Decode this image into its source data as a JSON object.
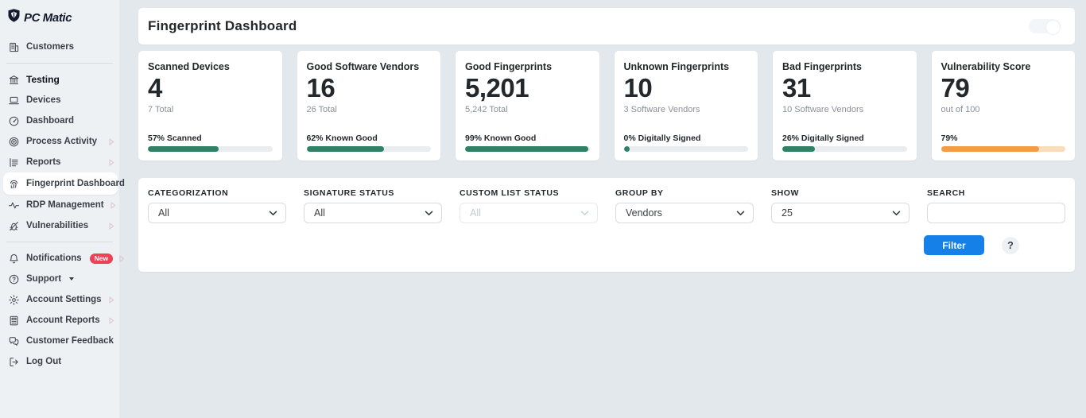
{
  "brand": {
    "name": "PC Matic"
  },
  "sidebar": {
    "items": [
      {
        "type": "item",
        "label": "Customers",
        "icon": "customers-building-icon"
      },
      {
        "type": "divider"
      },
      {
        "type": "item",
        "label": "Testing",
        "icon": "organization-icon",
        "bold": true
      },
      {
        "type": "item",
        "label": "Devices",
        "icon": "devices-laptop-icon"
      },
      {
        "type": "item",
        "label": "Dashboard",
        "icon": "dashboard-gauge-icon"
      },
      {
        "type": "item",
        "label": "Process Activity",
        "icon": "process-activity-target-icon",
        "chevron": true
      },
      {
        "type": "item",
        "label": "Reports",
        "icon": "reports-list-icon",
        "chevron": true
      },
      {
        "type": "item",
        "label": "Fingerprint Dashboard",
        "icon": "fingerprint-icon",
        "active": true
      },
      {
        "type": "item",
        "label": "RDP Management",
        "icon": "rdp-pulse-icon",
        "chevron": true
      },
      {
        "type": "item",
        "label": "Vulnerabilities",
        "icon": "vulnerabilities-icon",
        "chevron": true
      },
      {
        "type": "divider"
      },
      {
        "type": "item",
        "label": "Notifications",
        "icon": "bell-icon",
        "badge": "New",
        "chevron": true
      },
      {
        "type": "item",
        "label": "Support",
        "icon": "support-question-icon",
        "caret": true
      },
      {
        "type": "item",
        "label": "Account Settings",
        "icon": "gear-icon",
        "chevron": true
      },
      {
        "type": "item",
        "label": "Account Reports",
        "icon": "account-reports-icon",
        "chevron": true
      },
      {
        "type": "item",
        "label": "Customer Feedback",
        "icon": "feedback-chat-icon"
      },
      {
        "type": "item",
        "label": "Log Out",
        "icon": "logout-icon"
      }
    ]
  },
  "header": {
    "title": "Fingerprint Dashboard"
  },
  "cards": [
    {
      "title": "Scanned Devices",
      "value": "4",
      "subtitle": "7 Total",
      "progress_label": "57% Scanned",
      "progress_pct": 57,
      "color": "green"
    },
    {
      "title": "Good Software Vendors",
      "value": "16",
      "subtitle": "26 Total",
      "progress_label": "62% Known Good",
      "progress_pct": 62,
      "color": "green"
    },
    {
      "title": "Good Fingerprints",
      "value": "5,201",
      "subtitle": "5,242 Total",
      "progress_label": "99% Known Good",
      "progress_pct": 99,
      "color": "green"
    },
    {
      "title": "Unknown Fingerprints",
      "value": "10",
      "subtitle": "3 Software Vendors",
      "progress_label": "0% Digitally Signed",
      "progress_pct": 0,
      "color": "green"
    },
    {
      "title": "Bad Fingerprints",
      "value": "31",
      "subtitle": "10 Software Vendors",
      "progress_label": "26% Digitally Signed",
      "progress_pct": 26,
      "color": "green"
    },
    {
      "title": "Vulnerability Score",
      "value": "79",
      "subtitle": "out of 100",
      "progress_label": "79%",
      "progress_pct": 79,
      "color": "orange"
    }
  ],
  "filters": {
    "fields": [
      {
        "name": "categorization",
        "label": "CATEGORIZATION",
        "type": "select",
        "value": "All",
        "disabled": false
      },
      {
        "name": "signature-status",
        "label": "SIGNATURE STATUS",
        "type": "select",
        "value": "All",
        "disabled": false
      },
      {
        "name": "custom-list-status",
        "label": "CUSTOM LIST STATUS",
        "type": "select",
        "value": "All",
        "disabled": true
      },
      {
        "name": "group-by",
        "label": "GROUP BY",
        "type": "select",
        "value": "Vendors",
        "disabled": false
      },
      {
        "name": "show",
        "label": "SHOW",
        "type": "select",
        "value": "25",
        "disabled": false
      },
      {
        "name": "search",
        "label": "SEARCH",
        "type": "text",
        "value": "",
        "disabled": false
      }
    ],
    "filter_button": "Filter",
    "help_button": "?"
  },
  "colors": {
    "green_fill": "#2e8164",
    "green_track": "#e9edf0",
    "orange_fill": "#f79b43",
    "orange_track": "#fbddbb",
    "button_blue": "#1480e8",
    "badge_red": "#ef4156",
    "sidebar_bg": "#eef1f4",
    "main_bg": "#e3e8ec"
  }
}
